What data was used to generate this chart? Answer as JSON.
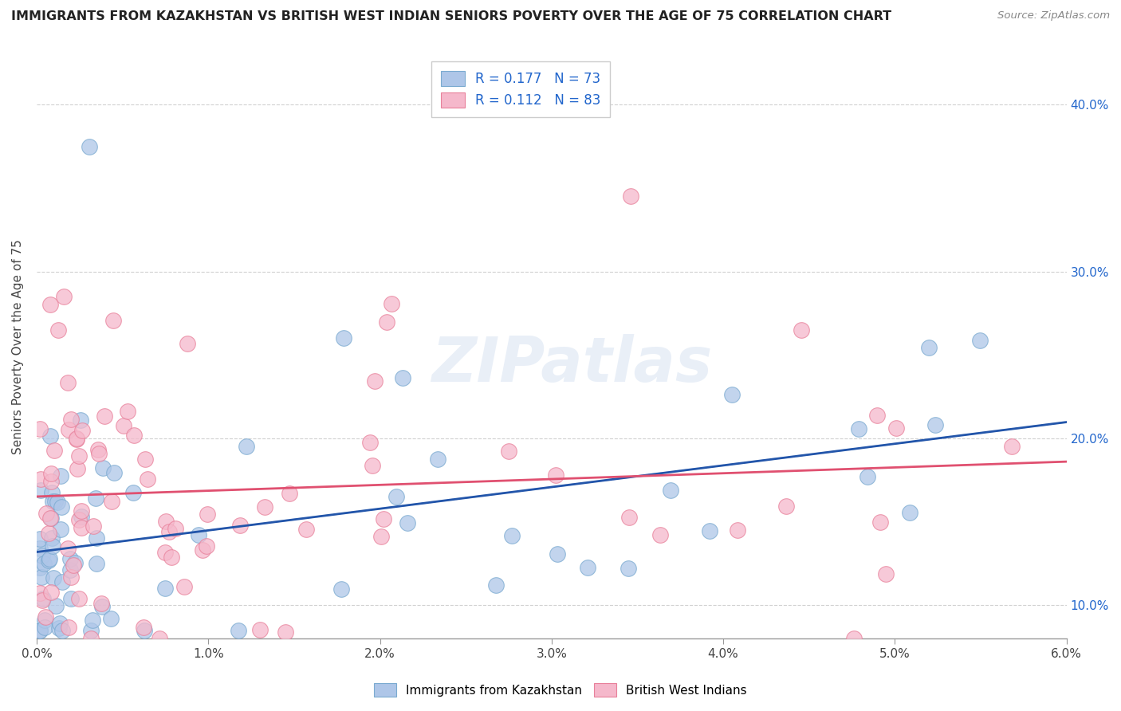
{
  "title": "IMMIGRANTS FROM KAZAKHSTAN VS BRITISH WEST INDIAN SENIORS POVERTY OVER THE AGE OF 75 CORRELATION CHART",
  "source": "Source: ZipAtlas.com",
  "ylabel": "Seniors Poverty Over the Age of 75",
  "xlim": [
    0.0,
    6.0
  ],
  "ylim": [
    8.0,
    43.0
  ],
  "yticks": [
    10.0,
    20.0,
    30.0,
    40.0
  ],
  "legend_r1": "R = 0.177",
  "legend_n1": "N = 73",
  "legend_r2": "R = 0.112",
  "legend_n2": "N = 83",
  "series1_label": "Immigrants from Kazakhstan",
  "series2_label": "British West Indians",
  "series1_color": "#aec6e8",
  "series2_color": "#f5b8cb",
  "series1_edge": "#7aaad0",
  "series2_edge": "#e8809a",
  "trend1_color": "#2255aa",
  "trend2_color": "#e05070",
  "trend1_dashed_color": "#aabbdd",
  "watermark": "ZIPatlas",
  "background_color": "#ffffff",
  "series1_color_legend": "#aec6e8",
  "series2_color_legend": "#f5b8cb",
  "legend_text_color": "#2266cc",
  "right_axis_color": "#2266cc"
}
